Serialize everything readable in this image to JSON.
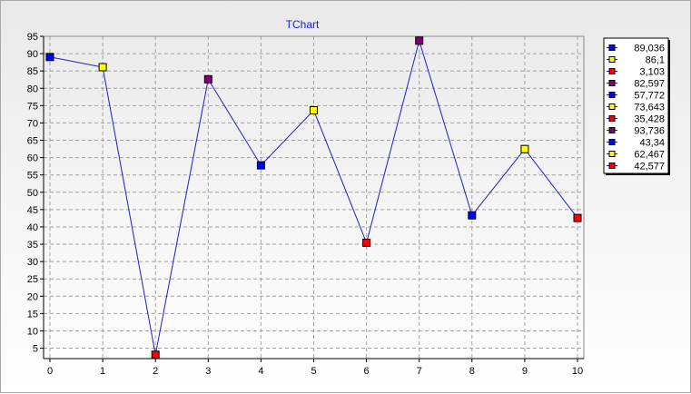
{
  "chart_data": {
    "type": "line",
    "title": "TChart",
    "x": [
      0,
      1,
      2,
      3,
      4,
      5,
      6,
      7,
      8,
      9,
      10
    ],
    "series": [
      {
        "values": [
          89.036,
          86.1,
          3.103,
          82.597,
          57.772,
          73.643,
          35.428,
          93.736,
          43.34,
          62.467,
          42.577
        ],
        "value_labels": [
          "89,036",
          "86,1",
          "3,103",
          "82,597",
          "57,772",
          "73,643",
          "35,428",
          "93,736",
          "43,34",
          "62,467",
          "42,577"
        ],
        "point_colors": [
          "#0000ff",
          "#ffff00",
          "#ff0000",
          "#800080",
          "#0000ff",
          "#ffff00",
          "#ff0000",
          "#800080",
          "#0000ff",
          "#ffff00",
          "#ff0000"
        ]
      }
    ],
    "line_color": "#1c1cc8",
    "title_color": "#1b1bd8",
    "xlim": [
      0,
      10
    ],
    "ylim": [
      2,
      95
    ],
    "yticks": [
      5,
      10,
      15,
      20,
      25,
      30,
      35,
      40,
      45,
      50,
      55,
      60,
      65,
      70,
      75,
      80,
      85,
      90,
      95
    ],
    "xticks": [
      0,
      1,
      2,
      3,
      4,
      5,
      6,
      7,
      8,
      9,
      10
    ],
    "grid": true,
    "legend_position": "right"
  }
}
